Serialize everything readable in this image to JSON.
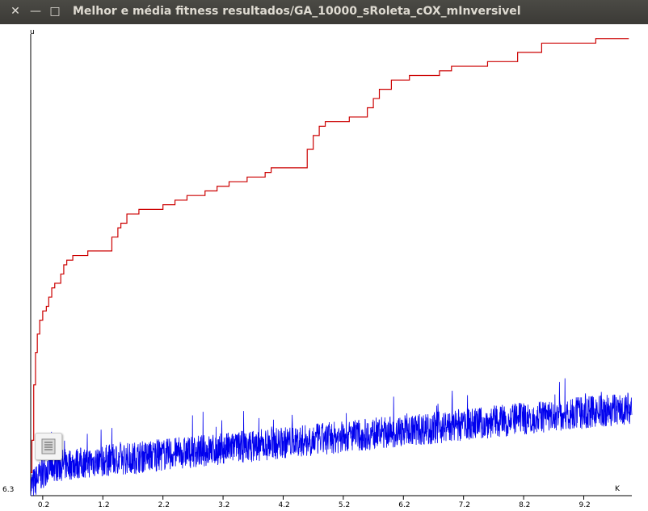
{
  "window": {
    "title": "Melhor e média fitness resultados/GA_10000_sRoleta_cOX_mInversivel",
    "close_glyph": "✕",
    "minimize_glyph": "—",
    "maximize_glyph": "□"
  },
  "chart_data": {
    "type": "line",
    "y_axis_label": "u",
    "x_axis_unit": "K",
    "y_min_label": "6.3",
    "x_ticks": [
      "0.2",
      "1.2",
      "2.2",
      "3.2",
      "4.2",
      "5.2",
      "6.2",
      "7.2",
      "8.2",
      "9.2"
    ],
    "x_range": [
      0,
      10
    ],
    "series": [
      {
        "key": "best",
        "color": "#cc0000",
        "style": "step",
        "points": [
          [
            0.0,
            0.05
          ],
          [
            0.02,
            0.12
          ],
          [
            0.05,
            0.24
          ],
          [
            0.08,
            0.31
          ],
          [
            0.11,
            0.35
          ],
          [
            0.15,
            0.38
          ],
          [
            0.2,
            0.4
          ],
          [
            0.26,
            0.41
          ],
          [
            0.3,
            0.43
          ],
          [
            0.35,
            0.45
          ],
          [
            0.4,
            0.46
          ],
          [
            0.5,
            0.48
          ],
          [
            0.55,
            0.5
          ],
          [
            0.6,
            0.51
          ],
          [
            0.7,
            0.52
          ],
          [
            0.8,
            0.52
          ],
          [
            0.95,
            0.53
          ],
          [
            1.2,
            0.53
          ],
          [
            1.35,
            0.56
          ],
          [
            1.45,
            0.58
          ],
          [
            1.5,
            0.59
          ],
          [
            1.6,
            0.61
          ],
          [
            1.8,
            0.62
          ],
          [
            2.2,
            0.63
          ],
          [
            2.4,
            0.64
          ],
          [
            2.6,
            0.65
          ],
          [
            2.9,
            0.66
          ],
          [
            3.1,
            0.67
          ],
          [
            3.3,
            0.68
          ],
          [
            3.6,
            0.69
          ],
          [
            3.9,
            0.7
          ],
          [
            4.0,
            0.71
          ],
          [
            4.3,
            0.71
          ],
          [
            4.6,
            0.75
          ],
          [
            4.7,
            0.78
          ],
          [
            4.8,
            0.8
          ],
          [
            4.9,
            0.81
          ],
          [
            5.3,
            0.82
          ],
          [
            5.6,
            0.84
          ],
          [
            5.7,
            0.86
          ],
          [
            5.8,
            0.88
          ],
          [
            6.0,
            0.9
          ],
          [
            6.3,
            0.91
          ],
          [
            6.8,
            0.92
          ],
          [
            7.0,
            0.93
          ],
          [
            7.6,
            0.94
          ],
          [
            8.1,
            0.96
          ],
          [
            8.5,
            0.98
          ],
          [
            9.4,
            0.99
          ],
          [
            9.95,
            0.99
          ]
        ]
      },
      {
        "key": "average",
        "color": "#0000ee",
        "style": "noisy",
        "base_start": 0.06,
        "base_end": 0.19,
        "noise": 0.035
      }
    ]
  }
}
